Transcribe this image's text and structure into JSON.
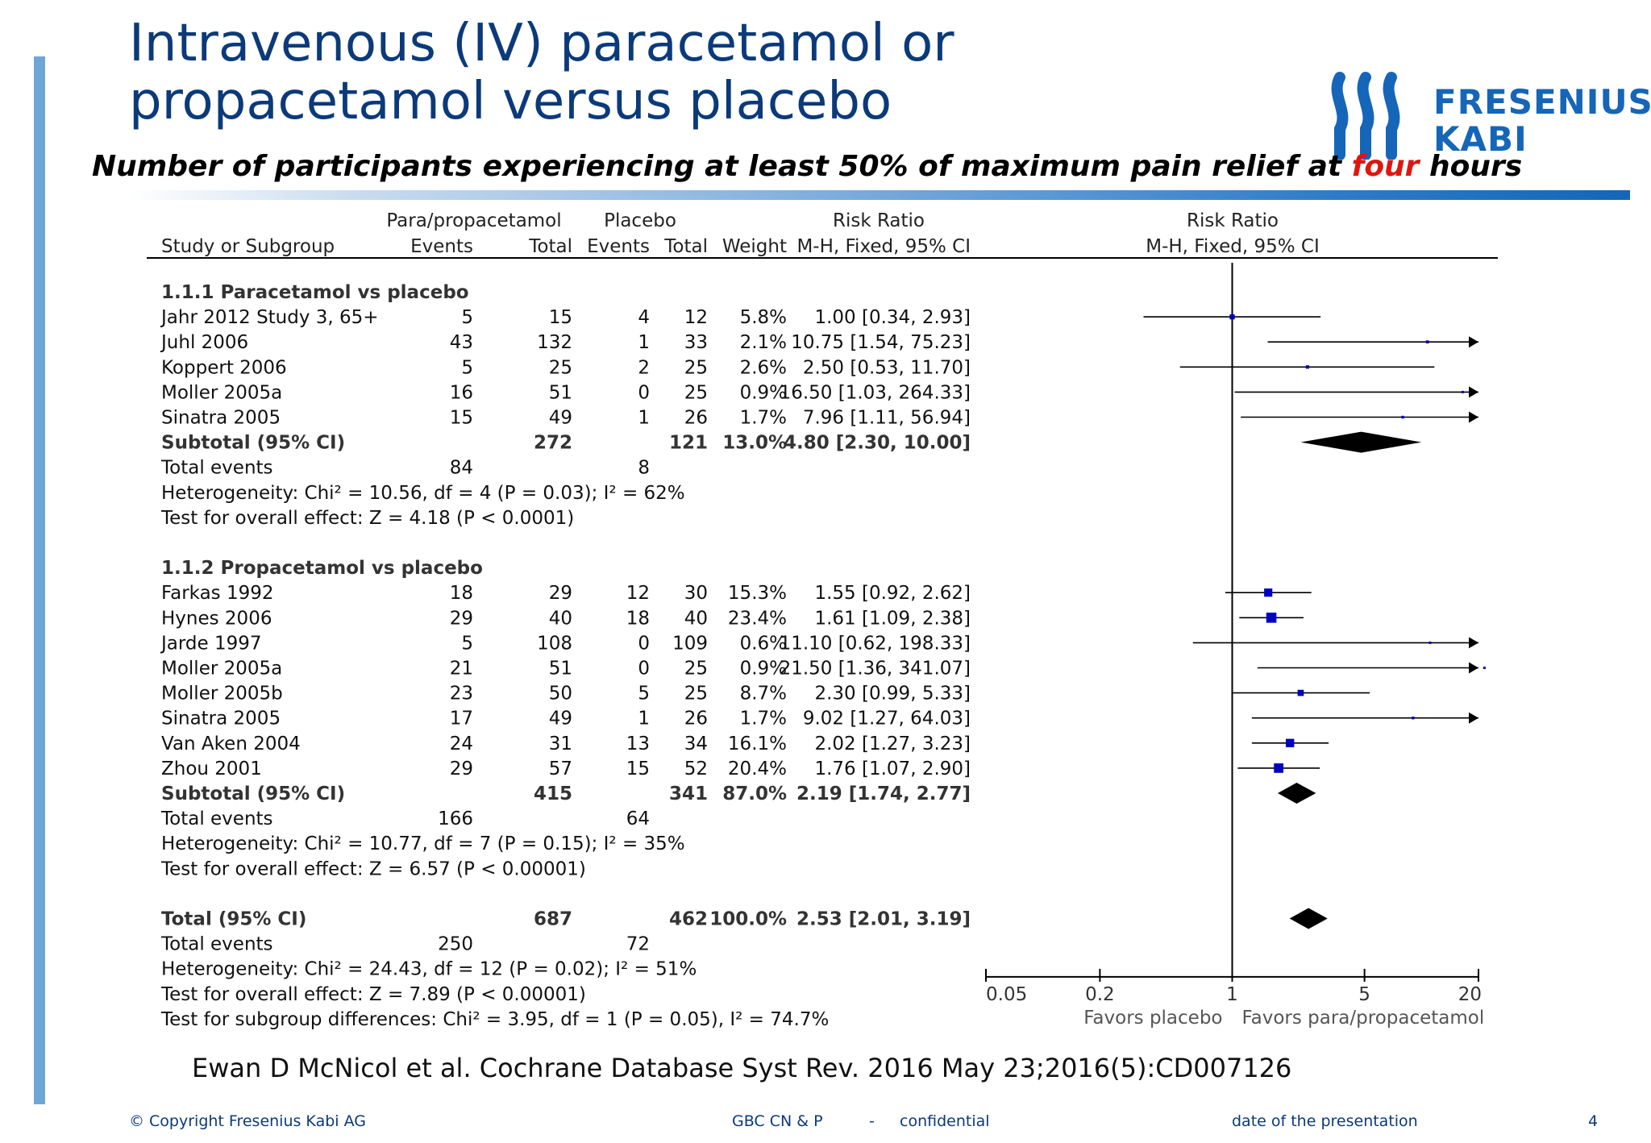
{
  "slide": {
    "title_line1": "Intravenous (IV) paracetamol or",
    "title_line2": "propacetamol versus placebo",
    "subtitle_pre": "Number of participants experiencing at least 50% of maximum pain relief at ",
    "subtitle_highlight": "four",
    "subtitle_post": " hours",
    "logo_line1": "FRESENIUS",
    "logo_line2": "KABI",
    "citation": "Ewan D McNicol et al. Cochrane Database Syst Rev. 2016 May 23;2016(5):CD007126",
    "footer_copyright": "© Copyright Fresenius Kabi AG",
    "footer_dept": "GBC CN & P",
    "footer_sep": "-",
    "footer_conf": "confidential",
    "footer_date": "date of the presentation",
    "page_number": "4",
    "colors": {
      "title": "#0b3a7a",
      "highlight": "#e0150f",
      "accent": "#1566b8",
      "marker": "#0000c0"
    }
  },
  "chart_data": {
    "type": "forest",
    "header_top": {
      "exp": "Para/propacetamol",
      "ctl": "Placebo",
      "rr": "Risk Ratio",
      "plot": "Risk Ratio"
    },
    "header_cols": [
      "Study or Subgroup",
      "Events",
      "Total",
      "Events",
      "Total",
      "Weight",
      "M-H, Fixed, 95% CI",
      "M-H, Fixed, 95% CI"
    ],
    "axis": {
      "scale": "log",
      "ticks": [
        "0.05",
        "0.2",
        "1",
        "5",
        "20"
      ],
      "tick_values": [
        0.05,
        0.2,
        1,
        5,
        20
      ],
      "left_label": "Favors placebo",
      "right_label": "Favors para/propacetamol"
    },
    "rows": [
      {
        "kind": "group",
        "label": "1.1.1 Paracetamol vs placebo"
      },
      {
        "kind": "study",
        "label": "Jahr 2012 Study 3, 65+",
        "e1": "5",
        "t1": "15",
        "e2": "4",
        "t2": "12",
        "w": "5.8%",
        "ci": "1.00 [0.34, 2.93]",
        "rr": 1.0,
        "lo": 0.34,
        "hi": 2.93,
        "wt": 5.8
      },
      {
        "kind": "study",
        "label": "Juhl 2006",
        "e1": "43",
        "t1": "132",
        "e2": "1",
        "t2": "33",
        "w": "2.1%",
        "ci": "10.75 [1.54, 75.23]",
        "rr": 10.75,
        "lo": 1.54,
        "hi": 75.23,
        "wt": 2.1
      },
      {
        "kind": "study",
        "label": "Koppert 2006",
        "e1": "5",
        "t1": "25",
        "e2": "2",
        "t2": "25",
        "w": "2.6%",
        "ci": "2.50 [0.53, 11.70]",
        "rr": 2.5,
        "lo": 0.53,
        "hi": 11.7,
        "wt": 2.6
      },
      {
        "kind": "study",
        "label": "Moller 2005a",
        "e1": "16",
        "t1": "51",
        "e2": "0",
        "t2": "25",
        "w": "0.9%",
        "ci": "16.50 [1.03, 264.33]",
        "rr": 16.5,
        "lo": 1.03,
        "hi": 264.33,
        "wt": 0.9
      },
      {
        "kind": "study",
        "label": "Sinatra 2005",
        "e1": "15",
        "t1": "49",
        "e2": "1",
        "t2": "26",
        "w": "1.7%",
        "ci": "7.96 [1.11, 56.94]",
        "rr": 7.96,
        "lo": 1.11,
        "hi": 56.94,
        "wt": 1.7
      },
      {
        "kind": "subtotal",
        "label": "Subtotal (95% CI)",
        "t1": "272",
        "t2": "121",
        "w": "13.0%",
        "ci": "4.80 [2.30, 10.00]",
        "rr": 4.8,
        "lo": 2.3,
        "hi": 10.0
      },
      {
        "kind": "text",
        "label": "Total events",
        "e1": "84",
        "e2": "8"
      },
      {
        "kind": "text",
        "label": "Heterogeneity: Chi² = 10.56, df = 4 (P = 0.03); I² = 62%"
      },
      {
        "kind": "text",
        "label": "Test for overall effect: Z = 4.18 (P < 0.0001)"
      },
      {
        "kind": "blank"
      },
      {
        "kind": "group",
        "label": "1.1.2 Propacetamol vs placebo"
      },
      {
        "kind": "study",
        "label": "Farkas 1992",
        "e1": "18",
        "t1": "29",
        "e2": "12",
        "t2": "30",
        "w": "15.3%",
        "ci": "1.55 [0.92, 2.62]",
        "rr": 1.55,
        "lo": 0.92,
        "hi": 2.62,
        "wt": 15.3
      },
      {
        "kind": "study",
        "label": "Hynes 2006",
        "e1": "29",
        "t1": "40",
        "e2": "18",
        "t2": "40",
        "w": "23.4%",
        "ci": "1.61 [1.09, 2.38]",
        "rr": 1.61,
        "lo": 1.09,
        "hi": 2.38,
        "wt": 23.4
      },
      {
        "kind": "study",
        "label": "Jarde 1997",
        "e1": "5",
        "t1": "108",
        "e2": "0",
        "t2": "109",
        "w": "0.6%",
        "ci": "11.10 [0.62, 198.33]",
        "rr": 11.1,
        "lo": 0.62,
        "hi": 198.33,
        "wt": 0.6
      },
      {
        "kind": "study",
        "label": "Moller 2005a",
        "e1": "21",
        "t1": "51",
        "e2": "0",
        "t2": "25",
        "w": "0.9%",
        "ci": "21.50 [1.36, 341.07]",
        "rr": 21.5,
        "lo": 1.36,
        "hi": 341.07,
        "wt": 0.9
      },
      {
        "kind": "study",
        "label": "Moller 2005b",
        "e1": "23",
        "t1": "50",
        "e2": "5",
        "t2": "25",
        "w": "8.7%",
        "ci": "2.30 [0.99, 5.33]",
        "rr": 2.3,
        "lo": 0.99,
        "hi": 5.33,
        "wt": 8.7
      },
      {
        "kind": "study",
        "label": "Sinatra 2005",
        "e1": "17",
        "t1": "49",
        "e2": "1",
        "t2": "26",
        "w": "1.7%",
        "ci": "9.02 [1.27, 64.03]",
        "rr": 9.02,
        "lo": 1.27,
        "hi": 64.03,
        "wt": 1.7
      },
      {
        "kind": "study",
        "label": "Van Aken 2004",
        "e1": "24",
        "t1": "31",
        "e2": "13",
        "t2": "34",
        "w": "16.1%",
        "ci": "2.02 [1.27, 3.23]",
        "rr": 2.02,
        "lo": 1.27,
        "hi": 3.23,
        "wt": 16.1
      },
      {
        "kind": "study",
        "label": "Zhou 2001",
        "e1": "29",
        "t1": "57",
        "e2": "15",
        "t2": "52",
        "w": "20.4%",
        "ci": "1.76 [1.07, 2.90]",
        "rr": 1.76,
        "lo": 1.07,
        "hi": 2.9,
        "wt": 20.4
      },
      {
        "kind": "subtotal",
        "label": "Subtotal (95% CI)",
        "t1": "415",
        "t2": "341",
        "w": "87.0%",
        "ci": "2.19 [1.74, 2.77]",
        "rr": 2.19,
        "lo": 1.74,
        "hi": 2.77
      },
      {
        "kind": "text",
        "label": "Total events",
        "e1": "166",
        "e2": "64"
      },
      {
        "kind": "text",
        "label": "Heterogeneity: Chi² = 10.77, df = 7 (P = 0.15); I² = 35%"
      },
      {
        "kind": "text",
        "label": "Test for overall effect: Z = 6.57 (P < 0.00001)"
      },
      {
        "kind": "blank"
      },
      {
        "kind": "subtotal",
        "label": "Total (95% CI)",
        "t1": "687",
        "t2": "462",
        "w": "100.0%",
        "ci": "2.53 [2.01, 3.19]",
        "rr": 2.53,
        "lo": 2.01,
        "hi": 3.19
      },
      {
        "kind": "text",
        "label": "Total events",
        "e1": "250",
        "e2": "72"
      },
      {
        "kind": "text",
        "label": "Heterogeneity: Chi² = 24.43, df = 12 (P = 0.02); I² = 51%"
      },
      {
        "kind": "text",
        "label": "Test for overall effect: Z = 7.89 (P < 0.00001)"
      },
      {
        "kind": "text",
        "label": "Test for subgroup differences: Chi² = 3.95, df = 1 (P = 0.05), I² = 74.7%"
      }
    ]
  }
}
